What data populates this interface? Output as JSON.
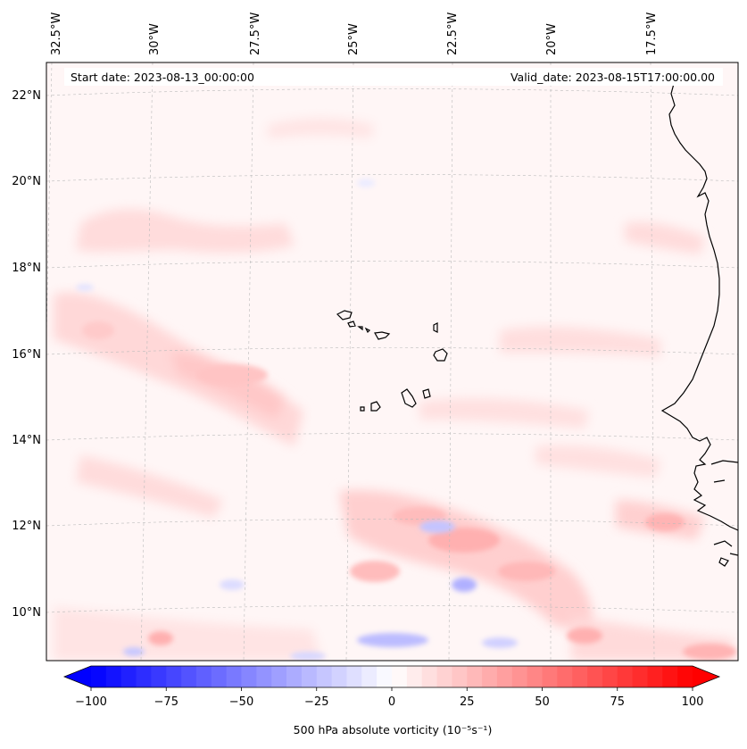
{
  "map": {
    "start_date": "Start date: 2023-08-13_00:00:00",
    "valid_date": "Valid_date: 2023-08-15T17:00:00.00",
    "lon_labels": [
      "32.5°W",
      "30°W",
      "27.5°W",
      "25°W",
      "22.5°W",
      "20°W",
      "17.5°W"
    ],
    "lat_labels": [
      "22°N",
      "20°N",
      "18°N",
      "16°N",
      "14°N",
      "12°N",
      "10°N"
    ]
  },
  "colorbar": {
    "min": -100,
    "max": 100,
    "ticks": [
      "−100",
      "−75",
      "−50",
      "−25",
      "0",
      "25",
      "50",
      "75",
      "100"
    ],
    "label": "500 hPa absolute vorticity (10⁻⁵s⁻¹)",
    "negative_color": "#0000ff",
    "positive_color": "#ff0000"
  },
  "colors": {
    "coastline": "#000000",
    "gridline": "#bbbbbb",
    "background": "#ffffff"
  }
}
